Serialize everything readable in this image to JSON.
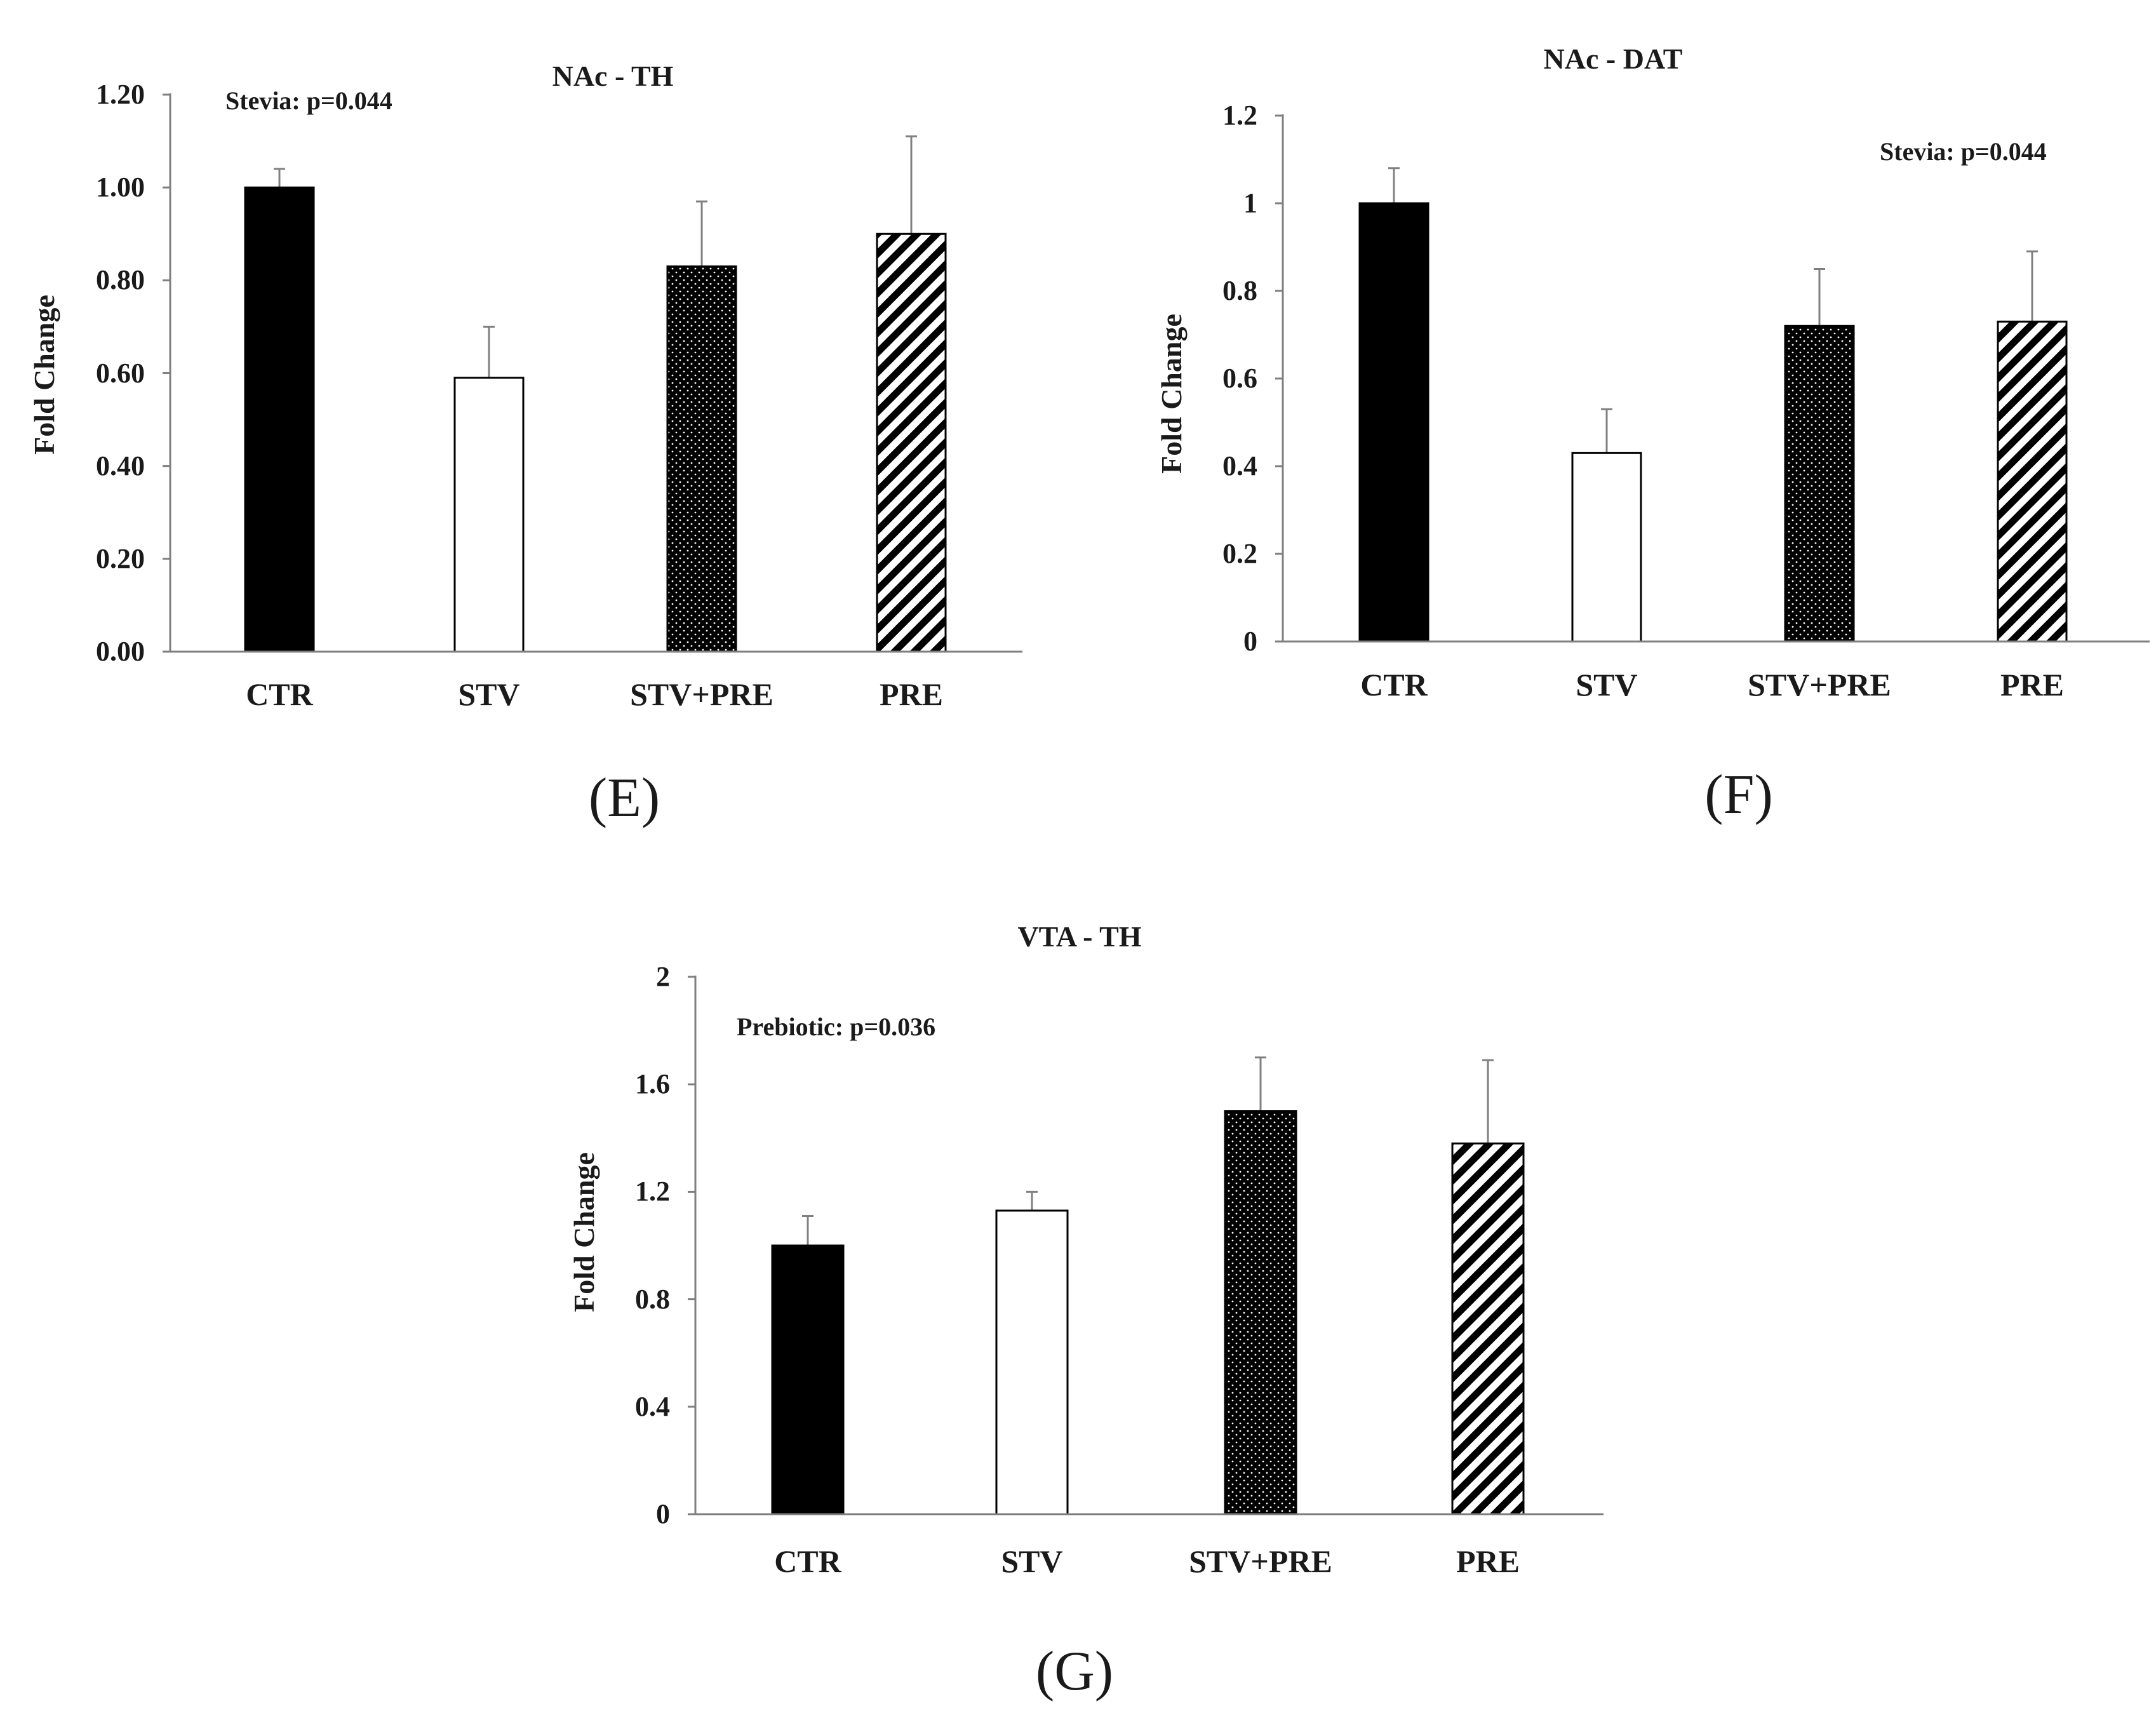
{
  "chart_data": [
    {
      "id": "E",
      "type": "bar",
      "title": "NAc - TH",
      "panel_label": "(E)",
      "ylabel": "Fold Change",
      "xlabel": "",
      "categories": [
        "CTR",
        "STV",
        "STV+PRE",
        "PRE"
      ],
      "values": [
        1.0,
        0.59,
        0.83,
        0.9
      ],
      "errors": [
        0.04,
        0.11,
        0.14,
        0.21
      ],
      "fills": [
        "solid",
        "white",
        "dots",
        "hatch"
      ],
      "ylim": [
        0,
        1.2
      ],
      "yticks": [
        0.0,
        0.2,
        0.4,
        0.6,
        0.8,
        1.0,
        1.2
      ],
      "ytick_labels": [
        "0.00",
        "0.20",
        "0.40",
        "0.60",
        "0.80",
        "1.00",
        "1.20"
      ],
      "annotation": "Stevia: p=0.044",
      "grid": false
    },
    {
      "id": "F",
      "type": "bar",
      "title": "NAc - DAT",
      "panel_label": "(F)",
      "ylabel": "Fold Change",
      "xlabel": "",
      "categories": [
        "CTR",
        "STV",
        "STV+PRE",
        "PRE"
      ],
      "values": [
        1.0,
        0.43,
        0.72,
        0.73
      ],
      "errors": [
        0.08,
        0.1,
        0.13,
        0.16
      ],
      "fills": [
        "solid",
        "white",
        "dots",
        "hatch"
      ],
      "ylim": [
        0,
        1.2
      ],
      "yticks": [
        0,
        0.2,
        0.4,
        0.6,
        0.8,
        1.0,
        1.2
      ],
      "ytick_labels": [
        "0",
        "0.2",
        "0.4",
        "0.6",
        "0.8",
        "1",
        "1.2"
      ],
      "annotation": "Stevia: p=0.044",
      "grid": false
    },
    {
      "id": "G",
      "type": "bar",
      "title": "VTA - TH",
      "panel_label": "(G)",
      "ylabel": "Fold Change",
      "xlabel": "",
      "categories": [
        "CTR",
        "STV",
        "STV+PRE",
        "PRE"
      ],
      "values": [
        1.0,
        1.13,
        1.5,
        1.38
      ],
      "errors": [
        0.11,
        0.07,
        0.2,
        0.31
      ],
      "fills": [
        "solid",
        "white",
        "dots",
        "hatch"
      ],
      "ylim": [
        0,
        2
      ],
      "yticks": [
        0,
        0.4,
        0.8,
        1.2,
        1.6,
        2
      ],
      "ytick_labels": [
        "0",
        "0.4",
        "0.8",
        "1.2",
        "1.6",
        "2"
      ],
      "annotation": "Prebiotic: p=0.036",
      "grid": false
    }
  ],
  "colors": {
    "solid_fill": "#000000",
    "white_fill": "#ffffff",
    "axis": "#7f7f7f",
    "error_bar": "#808080",
    "text": "#1a1a1a"
  }
}
